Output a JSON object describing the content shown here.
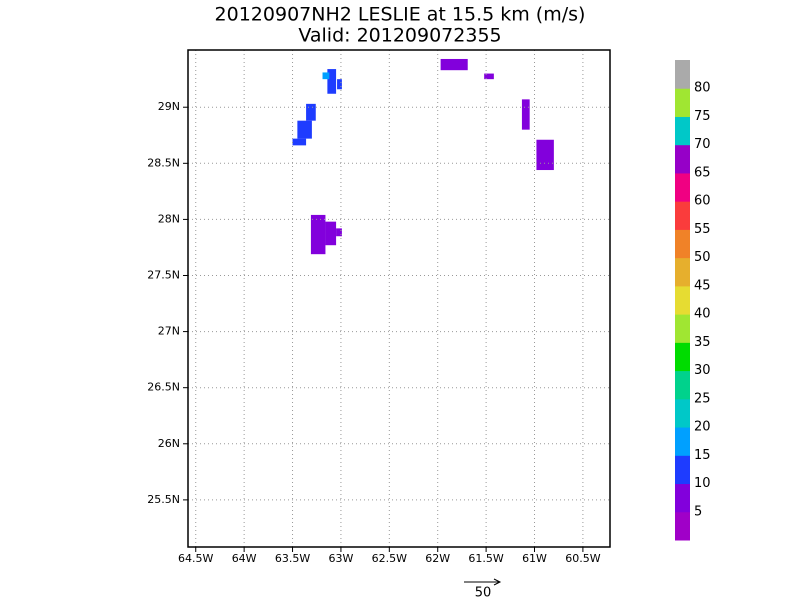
{
  "chart_data": {
    "type": "map",
    "title": "20120907NH2 LESLIE at 15.5 km (m/s)",
    "subtitle": "Valid: 201209072355",
    "xlim": [
      -64.58,
      -60.22
    ],
    "ylim": [
      25.08,
      29.51
    ],
    "xticks": [
      {
        "value": -64.5,
        "label": "64.5W"
      },
      {
        "value": -64,
        "label": "64W"
      },
      {
        "value": -63.5,
        "label": "63.5W"
      },
      {
        "value": -63,
        "label": "63W"
      },
      {
        "value": -62.5,
        "label": "62.5W"
      },
      {
        "value": -62,
        "label": "62W"
      },
      {
        "value": -61.5,
        "label": "61.5W"
      },
      {
        "value": -61,
        "label": "61W"
      },
      {
        "value": -60.5,
        "label": "60.5W"
      }
    ],
    "yticks": [
      {
        "value": 25.5,
        "label": "25.5N"
      },
      {
        "value": 26,
        "label": "26N"
      },
      {
        "value": 26.5,
        "label": "26.5N"
      },
      {
        "value": 27,
        "label": "27N"
      },
      {
        "value": 27.5,
        "label": "27.5N"
      },
      {
        "value": 28,
        "label": "28N"
      },
      {
        "value": 28.5,
        "label": "28.5N"
      },
      {
        "value": 29,
        "label": "29N"
      }
    ],
    "grid": true,
    "colorbar": {
      "levels": [
        5,
        10,
        15,
        20,
        25,
        30,
        35,
        40,
        45,
        50,
        55,
        60,
        65,
        70,
        75,
        80
      ],
      "colors": [
        "#a000c8",
        "#8200dc",
        "#1e3cff",
        "#00a0ff",
        "#00c8c8",
        "#00d28c",
        "#00dc00",
        "#a0e632",
        "#e6dc32",
        "#e6af2d",
        "#f08228",
        "#fa3c3c",
        "#f00082",
        "#9600c8",
        "#00c8c8",
        "#a0e632",
        "#aaaaaa"
      ]
    },
    "cells": [
      {
        "lon": [
          -63.36,
          -63.26
        ],
        "lat": [
          28.88,
          29.03
        ],
        "value": 12
      },
      {
        "lon": [
          -63.45,
          -63.3
        ],
        "lat": [
          28.72,
          28.88
        ],
        "value": 12
      },
      {
        "lon": [
          -63.5,
          -63.36
        ],
        "lat": [
          28.66,
          28.72
        ],
        "value": 12
      },
      {
        "lon": [
          -63.14,
          -63.05
        ],
        "lat": [
          29.12,
          29.34
        ],
        "value": 12
      },
      {
        "lon": [
          -63.04,
          -62.99
        ],
        "lat": [
          29.16,
          29.25
        ],
        "value": 12
      },
      {
        "lon": [
          -63.19,
          -63.12
        ],
        "lat": [
          29.25,
          29.31
        ],
        "value": 17
      },
      {
        "lon": [
          -63.31,
          -63.16
        ],
        "lat": [
          27.69,
          28.04
        ],
        "value": 7
      },
      {
        "lon": [
          -63.16,
          -63.05
        ],
        "lat": [
          27.77,
          27.98
        ],
        "value": 7
      },
      {
        "lon": [
          -63.05,
          -62.99
        ],
        "lat": [
          27.85,
          27.92
        ],
        "value": 7
      },
      {
        "lon": [
          -61.97,
          -61.69
        ],
        "lat": [
          29.33,
          29.43
        ],
        "value": 7
      },
      {
        "lon": [
          -61.52,
          -61.42
        ],
        "lat": [
          29.25,
          29.3
        ],
        "value": 7
      },
      {
        "lon": [
          -61.13,
          -61.05
        ],
        "lat": [
          28.8,
          29.07
        ],
        "value": 7
      },
      {
        "lon": [
          -60.98,
          -60.8
        ],
        "lat": [
          28.44,
          28.71
        ],
        "value": 7
      }
    ],
    "reference_vector": 50
  }
}
